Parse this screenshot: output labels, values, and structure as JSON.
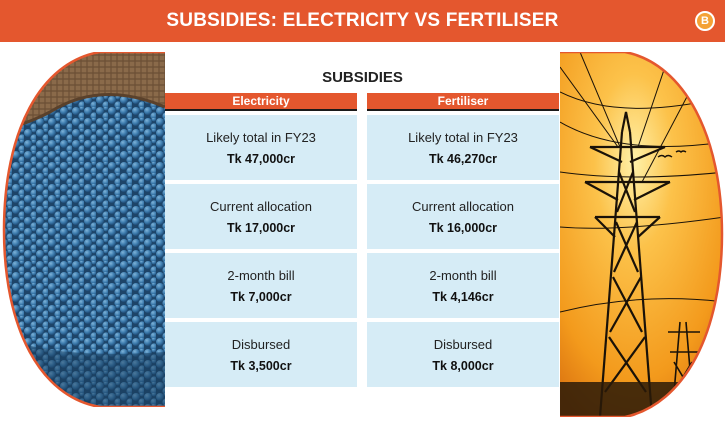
{
  "header": {
    "title": "SUBSIDIES: ELECTRICITY VS FERTILISER",
    "logo_text": "B"
  },
  "section_title": "SUBSIDIES",
  "columns": [
    {
      "header": "Electricity",
      "rows": [
        {
          "label": "Likely total in FY23",
          "value": "Tk 47,000cr"
        },
        {
          "label": "Current allocation",
          "value": "Tk 17,000cr"
        },
        {
          "label": "2-month bill",
          "value": "Tk 7,000cr"
        },
        {
          "label": "Disbursed",
          "value": "Tk 3,500cr"
        }
      ]
    },
    {
      "header": "Fertiliser",
      "rows": [
        {
          "label": "Likely total in FY23",
          "value": "Tk 46,270cr"
        },
        {
          "label": "Current allocation",
          "value": "Tk 16,000cr"
        },
        {
          "label": "2-month bill",
          "value": "Tk 4,146cr"
        },
        {
          "label": "Disbursed",
          "value": "Tk 8,000cr"
        }
      ]
    }
  ],
  "colors": {
    "accent": "#e4572e",
    "cell_bg": "#d6ecf6",
    "fertiliser_blue": "#3f7eb0",
    "sunset_orange": "#f39a1c"
  },
  "images": {
    "left": "fertiliser-granules-sack-photo",
    "right": "electricity-pylon-sunset-photo"
  }
}
